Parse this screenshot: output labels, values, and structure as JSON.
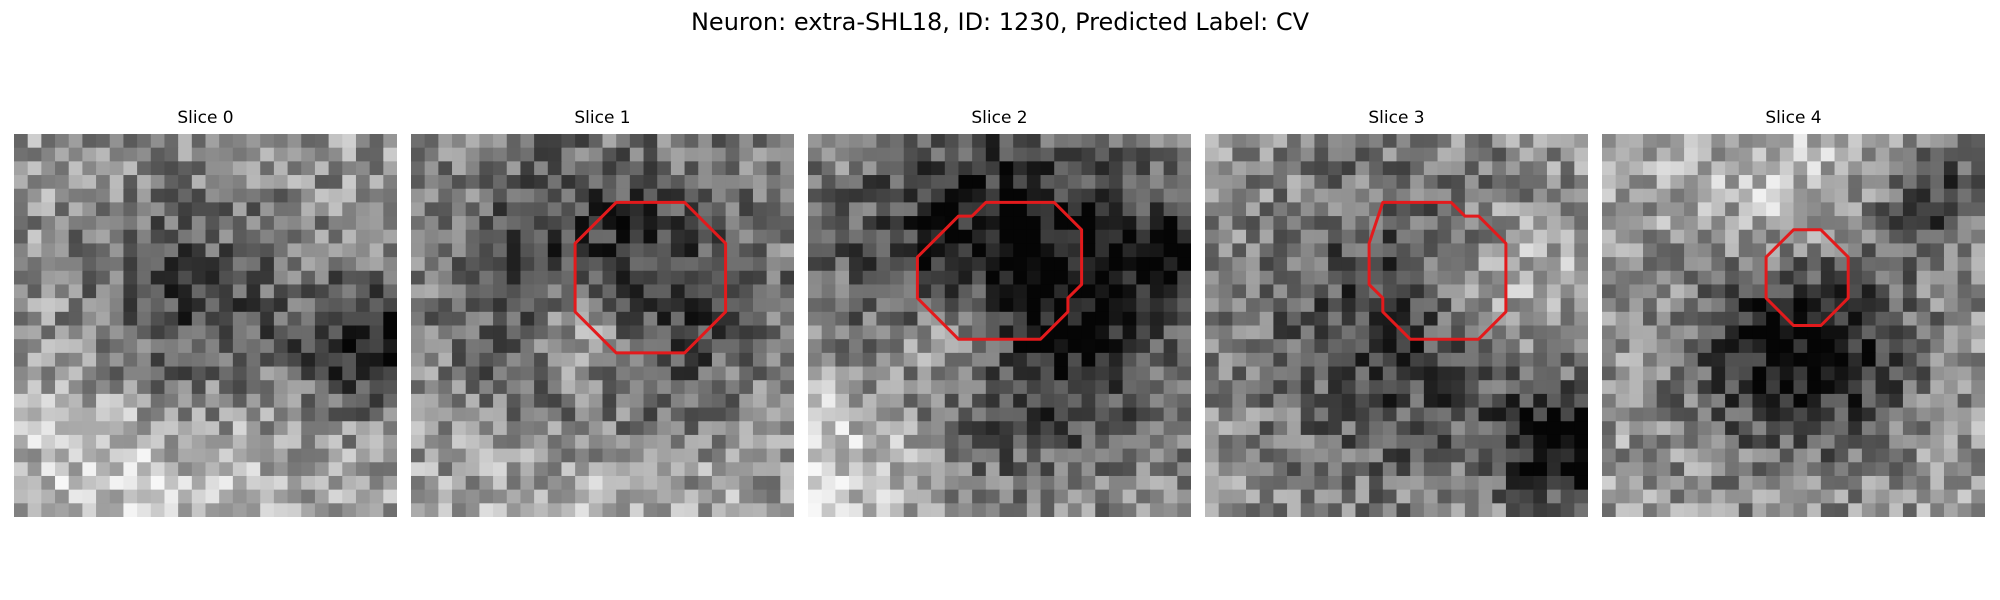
{
  "figure": {
    "title": "Neuron: extra-SHL18, ID: 1230, Predicted Label: CV"
  },
  "slices": [
    {
      "title": "Slice 0",
      "has_contour": false,
      "contour": [],
      "dark_blobs": [
        [
          0.45,
          0.48,
          0.22,
          0.45
        ],
        [
          0.93,
          0.55,
          0.12,
          0.5
        ]
      ],
      "bright_blobs": [
        [
          0.35,
          0.82,
          0.3,
          0.25
        ]
      ]
    },
    {
      "title": "Slice 1",
      "has_contour": true,
      "contour": [
        [
          15,
          5
        ],
        [
          20,
          5
        ],
        [
          23,
          8
        ],
        [
          23,
          13
        ],
        [
          20,
          16
        ],
        [
          15,
          16
        ],
        [
          12,
          13
        ],
        [
          12,
          8
        ]
      ],
      "dark_blobs": [
        [
          0.52,
          0.48,
          0.3,
          0.55
        ]
      ],
      "bright_blobs": [
        [
          0.46,
          0.52,
          0.1,
          0.45
        ],
        [
          0.5,
          0.9,
          0.3,
          0.25
        ]
      ]
    },
    {
      "title": "Slice 2",
      "has_contour": true,
      "contour": [
        [
          10,
          7
        ],
        [
          11,
          6
        ],
        [
          12,
          6
        ],
        [
          13,
          5
        ],
        [
          18,
          5
        ],
        [
          20,
          7
        ],
        [
          20,
          11
        ],
        [
          19,
          12
        ],
        [
          19,
          13
        ],
        [
          17,
          15
        ],
        [
          11,
          15
        ],
        [
          8,
          12
        ],
        [
          8,
          9
        ]
      ],
      "dark_blobs": [
        [
          0.52,
          0.42,
          0.3,
          0.7
        ],
        [
          0.98,
          0.3,
          0.08,
          0.5
        ]
      ],
      "bright_blobs": [
        [
          0.4,
          0.52,
          0.12,
          0.55
        ],
        [
          0.1,
          0.82,
          0.2,
          0.3
        ]
      ]
    },
    {
      "title": "Slice 3",
      "has_contour": true,
      "contour": [
        [
          13,
          5
        ],
        [
          18,
          5
        ],
        [
          19,
          6
        ],
        [
          20,
          6
        ],
        [
          22,
          8
        ],
        [
          22,
          13
        ],
        [
          20,
          15
        ],
        [
          15,
          15
        ],
        [
          13,
          13
        ],
        [
          13,
          12
        ],
        [
          12,
          11
        ],
        [
          12,
          8
        ]
      ],
      "dark_blobs": [
        [
          0.55,
          0.5,
          0.3,
          0.4
        ],
        [
          0.93,
          0.82,
          0.1,
          0.55
        ]
      ],
      "bright_blobs": [
        [
          0.8,
          0.4,
          0.15,
          0.35
        ]
      ]
    },
    {
      "title": "Slice 4",
      "has_contour": true,
      "contour": [
        [
          14,
          7
        ],
        [
          16,
          7
        ],
        [
          18,
          9
        ],
        [
          18,
          12
        ],
        [
          16,
          14
        ],
        [
          14,
          14
        ],
        [
          12,
          12
        ],
        [
          12,
          9
        ]
      ],
      "dark_blobs": [
        [
          0.52,
          0.52,
          0.2,
          0.7
        ],
        [
          0.85,
          0.15,
          0.1,
          0.4
        ]
      ],
      "bright_blobs": [
        [
          0.5,
          0.25,
          0.2,
          0.3
        ]
      ]
    }
  ],
  "colors": {
    "contour": "#e31a1c",
    "title": "#000000"
  }
}
